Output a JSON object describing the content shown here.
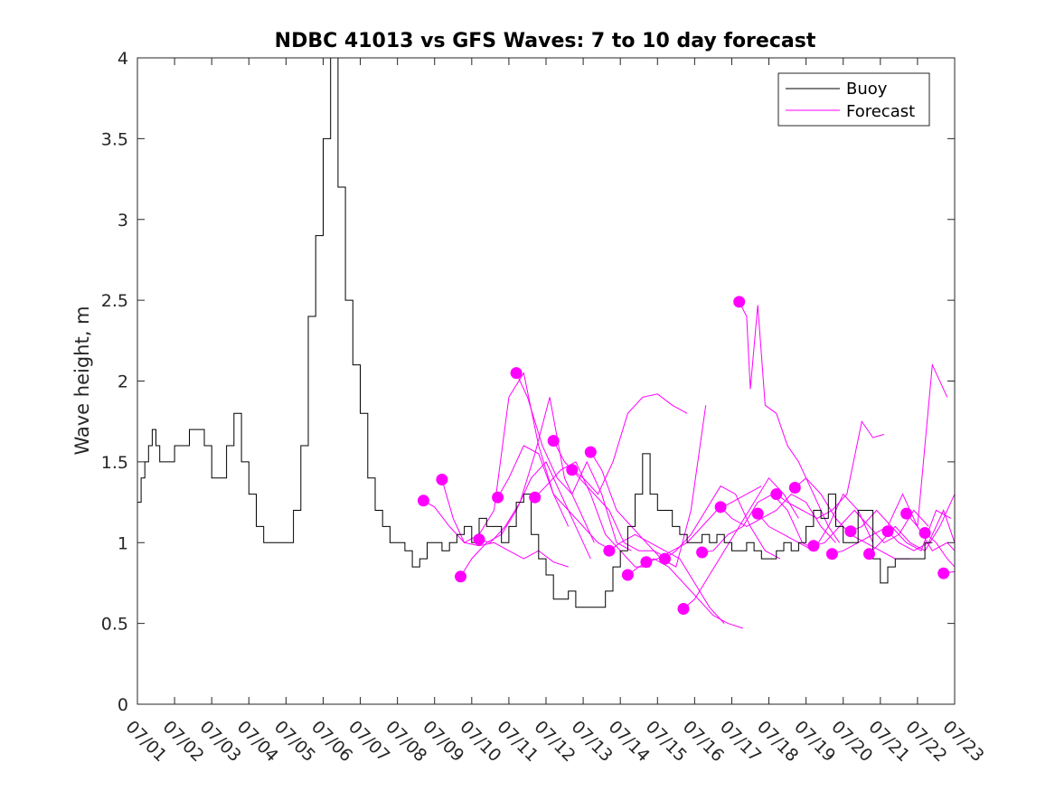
{
  "chart_data": {
    "type": "line",
    "title": "NDBC 41013 vs GFS Waves: 7 to 10 day forecast",
    "xlabel": "",
    "ylabel": "Wave height, m",
    "xlim": [
      0,
      22
    ],
    "ylim": [
      0,
      4
    ],
    "yticks": [
      "0",
      "0.5",
      "1",
      "1.5",
      "2",
      "2.5",
      "3",
      "3.5",
      "4"
    ],
    "xticks": [
      "07/01",
      "07/02",
      "07/03",
      "07/04",
      "07/05",
      "07/06",
      "07/07",
      "07/08",
      "07/09",
      "07/10",
      "07/11",
      "07/12",
      "07/13",
      "07/14",
      "07/15",
      "07/16",
      "07/17",
      "07/18",
      "07/19",
      "07/20",
      "07/21",
      "07/22",
      "07/23"
    ],
    "grid": false,
    "legend_position": "top-right",
    "colors": {
      "buoy": "#000000",
      "forecast": "#ff00ff"
    },
    "series": [
      {
        "name": "Buoy",
        "x": [
          0,
          0.1,
          0.2,
          0.3,
          0.4,
          0.5,
          0.6,
          0.8,
          1.0,
          1.2,
          1.4,
          1.6,
          1.8,
          2.0,
          2.2,
          2.4,
          2.6,
          2.8,
          3.0,
          3.2,
          3.4,
          3.6,
          3.8,
          4.0,
          4.2,
          4.4,
          4.6,
          4.8,
          5.0,
          5.2,
          5.4,
          5.6,
          5.8,
          6.0,
          6.2,
          6.4,
          6.6,
          6.8,
          7.0,
          7.2,
          7.4,
          7.6,
          7.8,
          8.0,
          8.2,
          8.4,
          8.6,
          8.8,
          9.0,
          9.2,
          9.4,
          9.6,
          9.8,
          10.0,
          10.2,
          10.4,
          10.6,
          10.8,
          11.0,
          11.2,
          11.4,
          11.6,
          11.8,
          12.0,
          12.2,
          12.4,
          12.6,
          12.8,
          13.0,
          13.2,
          13.4,
          13.6,
          13.8,
          14.0,
          14.2,
          14.4,
          14.6,
          14.8,
          15.0,
          15.2,
          15.4,
          15.6,
          15.8,
          16.0,
          16.2,
          16.4,
          16.6,
          16.8,
          17.0,
          17.2,
          17.4,
          17.6,
          17.8,
          18.0,
          18.2,
          18.4,
          18.6,
          18.8,
          19.0,
          19.2,
          19.4,
          19.6,
          19.8,
          20.0,
          20.2,
          20.4,
          20.6,
          20.8,
          21.0,
          21.2,
          21.4
        ],
        "values": [
          1.25,
          1.4,
          1.5,
          1.6,
          1.7,
          1.6,
          1.5,
          1.5,
          1.6,
          1.6,
          1.7,
          1.7,
          1.6,
          1.4,
          1.4,
          1.6,
          1.8,
          1.5,
          1.3,
          1.1,
          1.0,
          1.0,
          1.0,
          1.0,
          1.2,
          1.6,
          2.4,
          2.9,
          3.5,
          4.0,
          3.2,
          2.5,
          2.1,
          1.8,
          1.4,
          1.2,
          1.1,
          1.0,
          1.0,
          0.95,
          0.85,
          0.9,
          1.0,
          1.0,
          0.95,
          1.0,
          1.05,
          1.1,
          1.0,
          1.15,
          1.1,
          1.1,
          1.0,
          1.1,
          1.25,
          1.3,
          1.05,
          0.9,
          0.8,
          0.65,
          0.65,
          0.7,
          0.6,
          0.6,
          0.6,
          0.6,
          0.7,
          0.85,
          0.95,
          1.1,
          1.3,
          1.55,
          1.3,
          1.2,
          1.2,
          1.1,
          1.05,
          1.0,
          1.0,
          1.05,
          1.0,
          1.05,
          1.0,
          0.95,
          0.95,
          1.0,
          0.95,
          0.9,
          0.9,
          0.95,
          1.0,
          0.95,
          1.0,
          1.1,
          1.2,
          1.15,
          1.3,
          1.1,
          1.0,
          1.0,
          1.2,
          1.2,
          0.9,
          0.75,
          0.85,
          0.9,
          0.9,
          0.9,
          0.9,
          1.0,
          1.0
        ]
      },
      {
        "name": "Forecast",
        "runs": [
          {
            "x": [
              7.7,
              8.0,
              8.4,
              8.8,
              9.2,
              9.6,
              10.0,
              10.4,
              10.8,
              11.2,
              11.6
            ],
            "values": [
              1.26,
              1.22,
              1.1,
              1.0,
              0.98,
              1.0,
              0.95,
              0.9,
              0.95,
              0.88,
              0.85
            ]
          },
          {
            "x": [
              8.2,
              8.5,
              8.8,
              9.2,
              9.6,
              10.0,
              10.4,
              10.8,
              11.2,
              11.6
            ],
            "values": [
              1.39,
              1.15,
              1.0,
              1.05,
              1.2,
              1.9,
              2.05,
              1.6,
              1.3,
              1.1
            ]
          },
          {
            "x": [
              8.7,
              9.0,
              9.4,
              9.8,
              10.2,
              10.6,
              11.0,
              11.4,
              11.8,
              12.2
            ],
            "values": [
              0.79,
              0.9,
              1.0,
              1.05,
              1.2,
              1.4,
              1.5,
              1.3,
              1.1,
              0.9
            ]
          },
          {
            "x": [
              9.2,
              9.5,
              9.9,
              10.3,
              10.7,
              11.1,
              11.5,
              11.9,
              12.3
            ],
            "values": [
              1.02,
              1.0,
              1.1,
              1.25,
              1.55,
              1.9,
              1.4,
              1.2,
              1.0
            ]
          },
          {
            "x": [
              9.7,
              10.0,
              10.4,
              10.8,
              11.2,
              11.6,
              12.0,
              12.4,
              12.8
            ],
            "values": [
              1.28,
              1.4,
              1.6,
              1.55,
              1.3,
              1.2,
              1.1,
              1.0,
              0.95
            ]
          },
          {
            "x": [
              10.2,
              10.5,
              10.9,
              11.3,
              11.7,
              12.1,
              12.5,
              12.9,
              13.3
            ],
            "values": [
              2.05,
              1.9,
              1.6,
              1.4,
              1.3,
              1.5,
              1.3,
              1.0,
              0.95
            ]
          },
          {
            "x": [
              10.7,
              11.0,
              11.4,
              11.8,
              12.2,
              12.6,
              13.0,
              13.4,
              13.8
            ],
            "values": [
              1.28,
              1.35,
              1.45,
              1.5,
              1.3,
              1.05,
              0.95,
              0.85,
              0.85
            ]
          },
          {
            "x": [
              11.2,
              11.5,
              11.9,
              12.3,
              12.7,
              13.1,
              13.5,
              13.9,
              14.3
            ],
            "values": [
              1.63,
              1.5,
              1.4,
              1.3,
              1.2,
              1.0,
              0.95,
              0.95,
              0.9
            ]
          },
          {
            "x": [
              11.7,
              12.0,
              12.4,
              12.8,
              13.2,
              13.6,
              14.0,
              14.4,
              14.8
            ],
            "values": [
              1.45,
              1.4,
              1.3,
              1.5,
              1.8,
              1.9,
              1.92,
              1.85,
              1.8
            ]
          },
          {
            "x": [
              12.2,
              12.5,
              12.9,
              13.3,
              13.7,
              14.1,
              14.5,
              14.9,
              15.3
            ],
            "values": [
              1.56,
              1.45,
              1.2,
              1.1,
              1.0,
              0.9,
              0.85,
              1.2,
              1.85
            ]
          },
          {
            "x": [
              12.7,
              13.0,
              13.4,
              13.8,
              14.2,
              14.6,
              15.0,
              15.4,
              15.8
            ],
            "values": [
              0.95,
              1.0,
              1.05,
              1.0,
              0.95,
              0.9,
              0.75,
              0.6,
              0.5
            ]
          },
          {
            "x": [
              13.2,
              13.5,
              13.9,
              14.3,
              14.7,
              15.1,
              15.5,
              15.9,
              16.3
            ],
            "values": [
              0.8,
              0.85,
              0.9,
              0.85,
              0.75,
              0.65,
              0.55,
              0.5,
              0.47
            ]
          },
          {
            "x": [
              13.7,
              14.0,
              14.4,
              14.8,
              15.2,
              15.6,
              16.0,
              16.4,
              16.8
            ],
            "values": [
              0.88,
              0.9,
              0.95,
              1.0,
              1.1,
              1.2,
              1.25,
              1.3,
              1.35
            ]
          },
          {
            "x": [
              14.2,
              14.5,
              14.9,
              15.3,
              15.7,
              16.1,
              16.5,
              16.9,
              17.3
            ],
            "values": [
              0.9,
              0.95,
              1.05,
              1.2,
              1.35,
              1.3,
              1.1,
              0.95,
              0.9
            ]
          },
          {
            "x": [
              14.7,
              15.0,
              15.4,
              15.8,
              16.2,
              16.6,
              17.0,
              17.4,
              17.8
            ],
            "values": [
              0.59,
              0.65,
              0.8,
              0.95,
              1.1,
              1.25,
              1.4,
              1.3,
              1.15
            ]
          },
          {
            "x": [
              15.2,
              15.5,
              15.9,
              16.3,
              16.7,
              17.1,
              17.5,
              17.9,
              18.3
            ],
            "values": [
              0.94,
              0.95,
              1.05,
              1.1,
              1.25,
              1.3,
              1.2,
              1.0,
              0.95
            ]
          },
          {
            "x": [
              15.7,
              16.0,
              16.4,
              16.8,
              17.2,
              17.6,
              18.0,
              18.4,
              18.8
            ],
            "values": [
              1.22,
              1.15,
              1.1,
              1.15,
              1.2,
              1.3,
              1.25,
              1.1,
              1.0
            ]
          },
          {
            "x": [
              16.2,
              16.4,
              16.5,
              16.7,
              16.9,
              17.2,
              17.5,
              17.8,
              18.2,
              18.6,
              18.9
            ],
            "values": [
              2.49,
              2.4,
              1.95,
              2.47,
              1.85,
              1.8,
              1.6,
              1.5,
              1.3,
              1.1,
              1.0
            ]
          },
          {
            "x": [
              16.7,
              17.0,
              17.4,
              17.8,
              18.2,
              18.6,
              19.0,
              19.4,
              19.8
            ],
            "values": [
              1.18,
              1.1,
              1.05,
              1.0,
              0.95,
              1.1,
              1.3,
              1.2,
              1.0
            ]
          },
          {
            "x": [
              17.2,
              17.5,
              17.9,
              18.3,
              18.7,
              19.1,
              19.5,
              19.8,
              20.1
            ],
            "values": [
              1.3,
              1.25,
              1.2,
              1.15,
              1.2,
              1.3,
              1.75,
              1.65,
              1.67
            ]
          },
          {
            "x": [
              17.7,
              18.0,
              18.4,
              18.8,
              19.2,
              19.6,
              20.0,
              20.4,
              20.8
            ],
            "values": [
              1.34,
              1.4,
              1.3,
              1.15,
              1.05,
              1.0,
              0.95,
              0.9,
              0.9
            ]
          },
          {
            "x": [
              18.2,
              18.5,
              18.9,
              19.3,
              19.7,
              20.1,
              20.5,
              20.9,
              21.3
            ],
            "values": [
              0.98,
              1.0,
              1.1,
              1.2,
              1.1,
              1.0,
              1.05,
              1.2,
              1.1
            ]
          },
          {
            "x": [
              18.7,
              19.0,
              19.4,
              19.8,
              20.2,
              20.6,
              21.0,
              21.4,
              21.8
            ],
            "values": [
              0.93,
              0.95,
              1.0,
              1.05,
              1.1,
              1.3,
              1.1,
              2.1,
              1.9
            ]
          },
          {
            "x": [
              19.2,
              19.5,
              19.9,
              20.3,
              20.7,
              21.1,
              21.5,
              21.9
            ],
            "values": [
              1.07,
              1.1,
              1.2,
              1.1,
              1.0,
              0.95,
              1.2,
              1.15
            ]
          },
          {
            "x": [
              19.7,
              20.0,
              20.4,
              20.8,
              21.2,
              21.6,
              22.0
            ],
            "values": [
              0.93,
              1.0,
              1.1,
              1.0,
              0.95,
              1.1,
              1.3
            ]
          },
          {
            "x": [
              20.2,
              20.5,
              20.9,
              21.3,
              21.7,
              22.0
            ],
            "values": [
              1.07,
              1.0,
              0.95,
              1.0,
              1.2,
              1.0
            ]
          },
          {
            "x": [
              20.7,
              21.0,
              21.4,
              21.8,
              22.0
            ],
            "values": [
              1.18,
              1.1,
              0.95,
              1.0,
              0.95
            ]
          },
          {
            "x": [
              21.2,
              21.5,
              21.8,
              22.0
            ],
            "values": [
              1.06,
              1.0,
              0.9,
              0.85
            ]
          },
          {
            "x": [
              21.7,
              22.0
            ],
            "values": [
              0.81,
              0.82
            ]
          }
        ]
      }
    ]
  }
}
